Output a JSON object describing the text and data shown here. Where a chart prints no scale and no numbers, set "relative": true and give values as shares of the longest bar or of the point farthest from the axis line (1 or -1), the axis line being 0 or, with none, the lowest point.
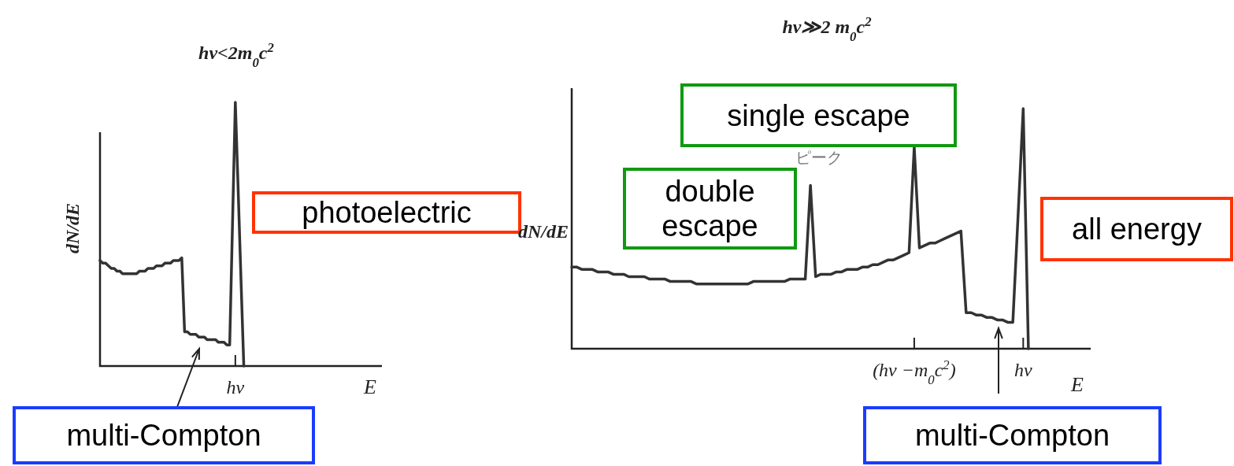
{
  "chart_data": [
    {
      "type": "line",
      "title": "hν<2m$_{0}$c$^{2}$",
      "xlabel": "E",
      "ylabel": "dN/dE",
      "relative": true,
      "color": "#333333",
      "categories": [
        null,
        null,
        null,
        null,
        null,
        null,
        null,
        null,
        null,
        null,
        null,
        null,
        null,
        null,
        null,
        null,
        null,
        null,
        null,
        null,
        null,
        null,
        null,
        null,
        null,
        null,
        null,
        null,
        null,
        null,
        null,
        null,
        null,
        null,
        null,
        null,
        null,
        null,
        null,
        null,
        null,
        null,
        null,
        null,
        null,
        null,
        null,
        null,
        null,
        null,
        null,
        null,
        null,
        null,
        null,
        null,
        null,
        null,
        null,
        null,
        null,
        null,
        null,
        null,
        null,
        null,
        null,
        null,
        null,
        null,
        null,
        null,
        null,
        null,
        null,
        null,
        null,
        null,
        null,
        null,
        null,
        null,
        null,
        null,
        null,
        null,
        null,
        null,
        null,
        null,
        null,
        null,
        null,
        null,
        null,
        null,
        null,
        null,
        null,
        null,
        null
      ],
      "values": [
        0.4,
        0.39,
        0.39,
        0.38,
        0.37,
        0.37,
        0.36,
        0.36,
        0.35,
        0.35,
        0.35,
        0.35,
        0.35,
        0.35,
        0.36,
        0.36,
        0.36,
        0.37,
        0.37,
        0.37,
        0.38,
        0.38,
        0.38,
        0.39,
        0.39,
        0.39,
        0.4,
        0.4,
        0.4,
        0.41,
        0.13,
        0.13,
        0.12,
        0.12,
        0.12,
        0.11,
        0.11,
        0.11,
        0.1,
        0.1,
        0.1,
        0.1,
        0.09,
        0.09,
        0.09,
        0.08,
        0.08,
        0.54,
        1,
        0.67,
        0.33,
        0,
        null,
        null,
        null,
        null,
        null,
        null,
        null,
        null,
        null,
        null,
        null,
        null,
        null,
        null,
        null,
        null,
        null,
        null,
        null,
        null,
        null,
        null,
        null,
        null,
        null,
        null,
        null,
        null,
        null,
        null,
        null,
        null,
        null,
        null,
        null,
        null,
        null,
        null,
        null,
        null,
        null,
        null,
        null,
        null,
        null,
        null,
        null,
        null,
        null
      ],
      "annotations": [
        "photoelectric",
        "multi-Compton",
        "hν"
      ]
    },
    {
      "type": "line",
      "title": "hν≫2 m$_{0}$c$^{2}$",
      "xlabel": "E",
      "ylabel": "dN/dE",
      "relative": true,
      "color": "#333333",
      "categories": [
        null,
        null,
        null,
        null,
        null,
        null,
        null,
        null,
        null,
        null,
        null,
        null,
        null,
        null,
        null,
        null,
        null,
        null,
        null,
        null,
        null,
        null,
        null,
        null,
        null,
        null,
        null,
        null,
        null,
        null,
        null,
        null,
        null,
        null,
        null,
        null,
        null,
        null,
        null,
        null,
        null,
        null,
        null,
        null,
        null,
        null,
        null,
        null,
        null,
        null,
        null,
        null,
        null,
        null,
        null,
        null,
        null,
        null,
        null,
        null,
        null,
        null,
        null,
        null,
        null,
        null,
        "(hν −m$_{0}$c$^{2}$)",
        null,
        null,
        null,
        null,
        null,
        null,
        null,
        null,
        null,
        null,
        null,
        null,
        null,
        null,
        null,
        null,
        null,
        null,
        null,
        null,
        "hν",
        null,
        null,
        null,
        null,
        null,
        null,
        null,
        null,
        null,
        null,
        null,
        null,
        null
      ],
      "values": [
        0.34,
        0.34,
        0.33,
        0.33,
        0.33,
        0.32,
        0.32,
        0.32,
        0.31,
        0.31,
        0.31,
        0.3,
        0.3,
        0.3,
        0.3,
        0.29,
        0.29,
        0.29,
        0.29,
        0.28,
        0.28,
        0.28,
        0.28,
        0.28,
        0.27,
        0.27,
        0.27,
        0.27,
        0.27,
        0.27,
        0.27,
        0.27,
        0.27,
        0.27,
        0.27,
        0.28,
        0.28,
        0.28,
        0.28,
        0.28,
        0.28,
        0.28,
        0.29,
        0.29,
        0.29,
        0.29,
        0.68,
        0.3,
        0.31,
        0.31,
        0.31,
        0.32,
        0.32,
        0.33,
        0.33,
        0.33,
        0.34,
        0.34,
        0.35,
        0.35,
        0.36,
        0.37,
        0.37,
        0.38,
        0.39,
        0.4,
        0.84,
        0.42,
        0.43,
        0.44,
        0.44,
        0.45,
        0.46,
        0.47,
        0.48,
        0.49,
        0.15,
        0.15,
        0.14,
        0.14,
        0.13,
        0.13,
        0.12,
        0.12,
        0.11,
        0.11,
        0.55,
        1,
        0,
        null,
        null,
        null,
        null,
        null,
        null,
        null,
        null,
        null,
        null,
        null,
        null
      ],
      "annotations": [
        "single escape",
        "ピーク",
        "double escape",
        "all energy",
        "multi-Compton"
      ]
    }
  ]
}
